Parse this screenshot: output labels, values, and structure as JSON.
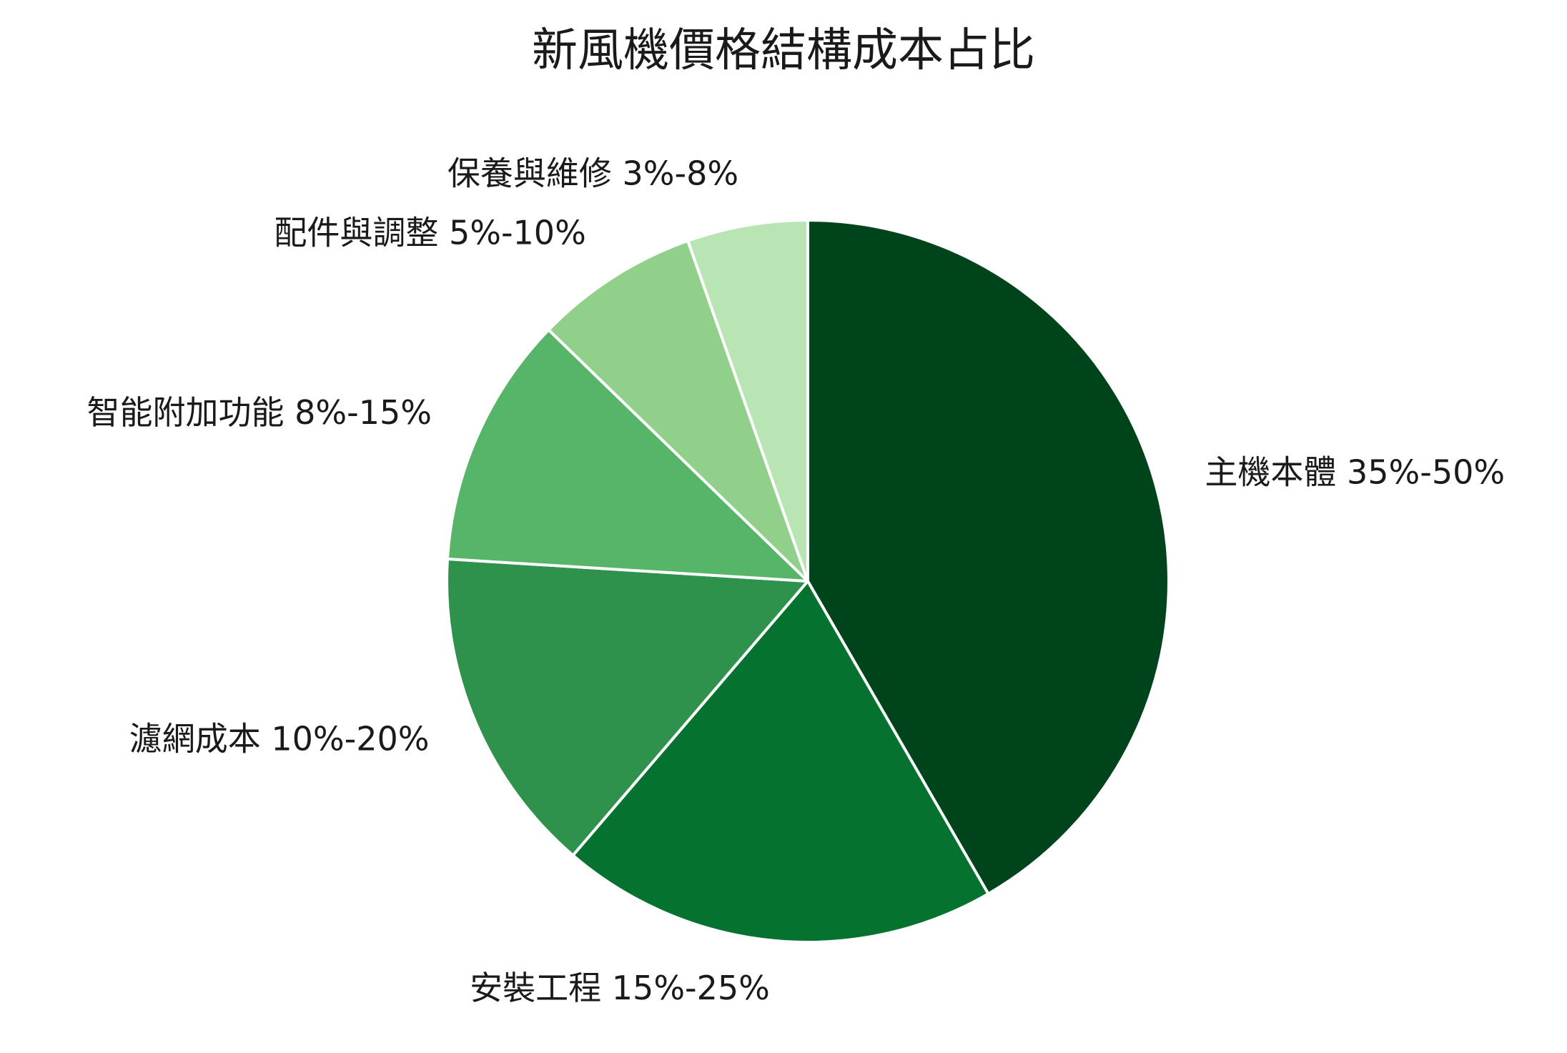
{
  "chart_data": {
    "type": "pie",
    "title": "新風機價格結構成本占比",
    "start_angle_deg": 90,
    "direction": "clockwise",
    "slices": [
      {
        "label": "主機本體 35%-50%",
        "value": 42.5,
        "color": "#00441b"
      },
      {
        "label": "安裝工程 15%-25%",
        "value": 20,
        "color": "#067230"
      },
      {
        "label": "濾網成本 10%-20%",
        "value": 15,
        "color": "#2e924d"
      },
      {
        "label": "智能附加功能 8%-15%",
        "value": 11.5,
        "color": "#56b569"
      },
      {
        "label": "配件與調整 5%-10%",
        "value": 7.5,
        "color": "#90d08a"
      },
      {
        "label": "保養與維修 3%-8%",
        "value": 5.5,
        "color": "#b9e4b3"
      }
    ]
  }
}
